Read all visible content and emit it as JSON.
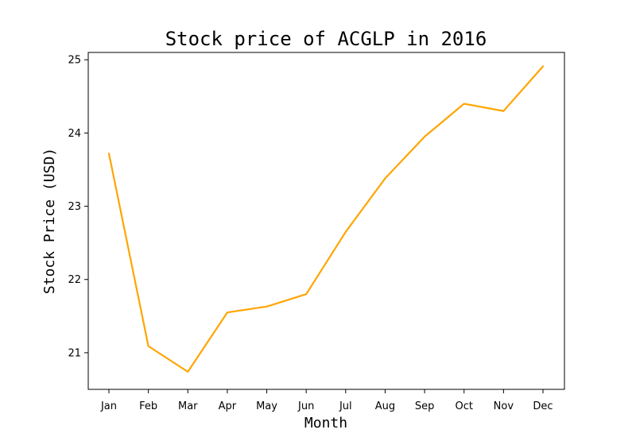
{
  "chart_data": {
    "type": "line",
    "title": "Stock price of ACGLP in 2016",
    "xlabel": "Month",
    "ylabel": "Stock Price (USD)",
    "categories": [
      "Jan",
      "Feb",
      "Mar",
      "Apr",
      "May",
      "Jun",
      "Jul",
      "Aug",
      "Sep",
      "Oct",
      "Nov",
      "Dec"
    ],
    "series": [
      {
        "values": [
          23.72,
          21.09,
          20.74,
          21.55,
          21.63,
          21.8,
          22.65,
          23.38,
          23.95,
          24.4,
          24.3,
          24.91
        ],
        "color": "#FFA500"
      }
    ],
    "yticks": [
      21,
      22,
      23,
      24,
      25
    ],
    "ylim": [
      20.5,
      25.1
    ],
    "grid": false,
    "legend": "none"
  }
}
